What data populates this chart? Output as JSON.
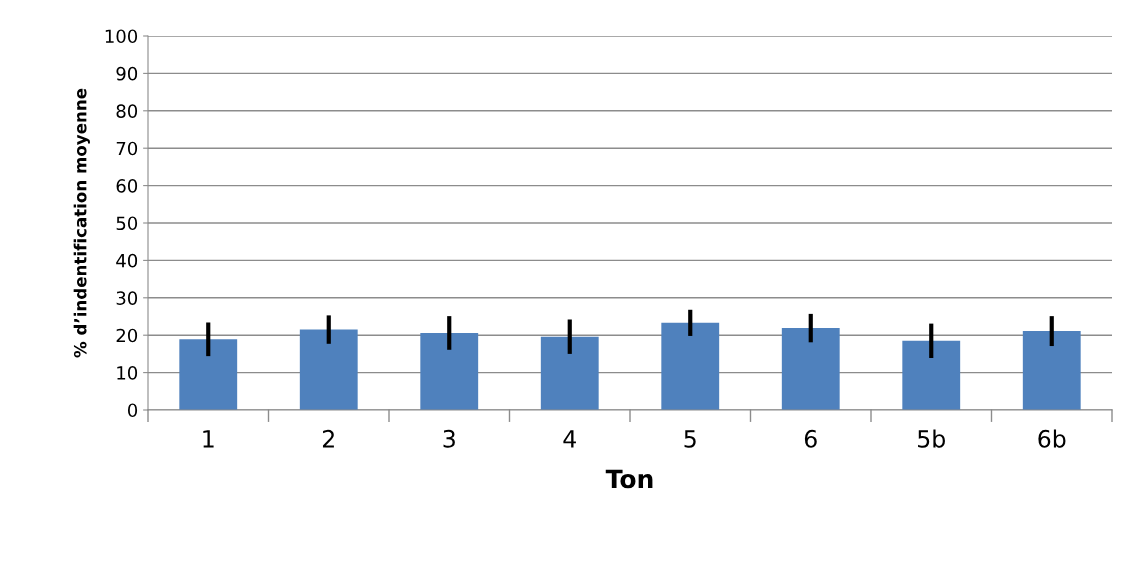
{
  "chart_data": {
    "type": "bar",
    "xlabel": "Ton",
    "ylabel": "% d’indentification moyenne",
    "categories": [
      "1",
      "2",
      "3",
      "4",
      "5",
      "6",
      "5b",
      "6b"
    ],
    "values": [
      18.9,
      21.5,
      20.6,
      19.6,
      23.3,
      21.9,
      18.5,
      21.1
    ],
    "errors": [
      4.5,
      3.8,
      4.5,
      4.6,
      3.5,
      3.8,
      4.6,
      4.0
    ],
    "color": "#4f81bd",
    "ylim": [
      0,
      100
    ],
    "yticks": [
      0,
      10,
      20,
      30,
      40,
      50,
      60,
      70,
      80,
      90,
      100
    ],
    "grid": "y"
  }
}
